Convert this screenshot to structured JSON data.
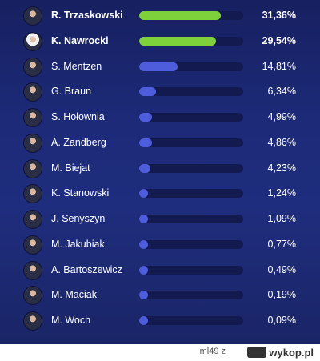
{
  "chart_data": {
    "type": "bar",
    "orientation": "horizontal",
    "unit": "%",
    "xlim": [
      0,
      40
    ],
    "colors": {
      "leader": "#7fd13b",
      "other": "#4d5ddc",
      "track": "#121a4f",
      "background": "#1c2a78"
    },
    "categories": [
      "R. Trzaskowski",
      "K. Nawrocki",
      "S. Mentzen",
      "G. Braun",
      "S. Hołownia",
      "A. Zandberg",
      "M. Biejat",
      "K. Stanowski",
      "J. Senyszyn",
      "M. Jakubiak",
      "A. Bartoszewicz",
      "M. Maciak",
      "M. Woch"
    ],
    "values": [
      31.36,
      29.54,
      14.81,
      6.34,
      4.99,
      4.86,
      4.23,
      1.24,
      1.09,
      0.77,
      0.49,
      0.19,
      0.09
    ],
    "value_labels": [
      "31,36%",
      "29,54%",
      "14,81%",
      "6,34%",
      "4,99%",
      "4,86%",
      "4,23%",
      "1,24%",
      "1,09%",
      "0,77%",
      "0,49%",
      "0,19%",
      "0,09%"
    ],
    "highlighted": [
      true,
      true,
      false,
      false,
      false,
      false,
      false,
      false,
      false,
      false,
      false,
      false,
      false
    ]
  },
  "footer": {
    "user": "ml49 z",
    "logo_text": "wykop.pl"
  }
}
